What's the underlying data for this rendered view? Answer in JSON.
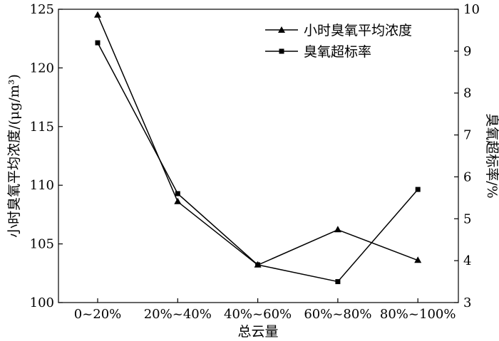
{
  "chart_data": {
    "type": "line",
    "categories": [
      "0~20%",
      "20%~40%",
      "40%~60%",
      "60%~80%",
      "80%~100%"
    ],
    "xlabel": "总云量",
    "ylabel": "小时臭氧平均浓度/(μg/m³)",
    "y2label": "臭氧超标率/%",
    "ylim": [
      100,
      125
    ],
    "y2lim": [
      3,
      10
    ],
    "yticks": [
      100,
      105,
      110,
      115,
      120,
      125
    ],
    "y2ticks": [
      3,
      4,
      5,
      6,
      7,
      8,
      9,
      10
    ],
    "legend_position": "top-right",
    "grid": false,
    "series": [
      {
        "name": "小时臭氧平均浓度",
        "axis": "left",
        "marker": "triangle",
        "values": [
          124.5,
          108.6,
          103.2,
          106.2,
          103.6
        ]
      },
      {
        "name": "臭氧超标率",
        "axis": "right",
        "marker": "square",
        "values": [
          9.2,
          5.6,
          3.9,
          3.5,
          5.7
        ]
      }
    ]
  }
}
